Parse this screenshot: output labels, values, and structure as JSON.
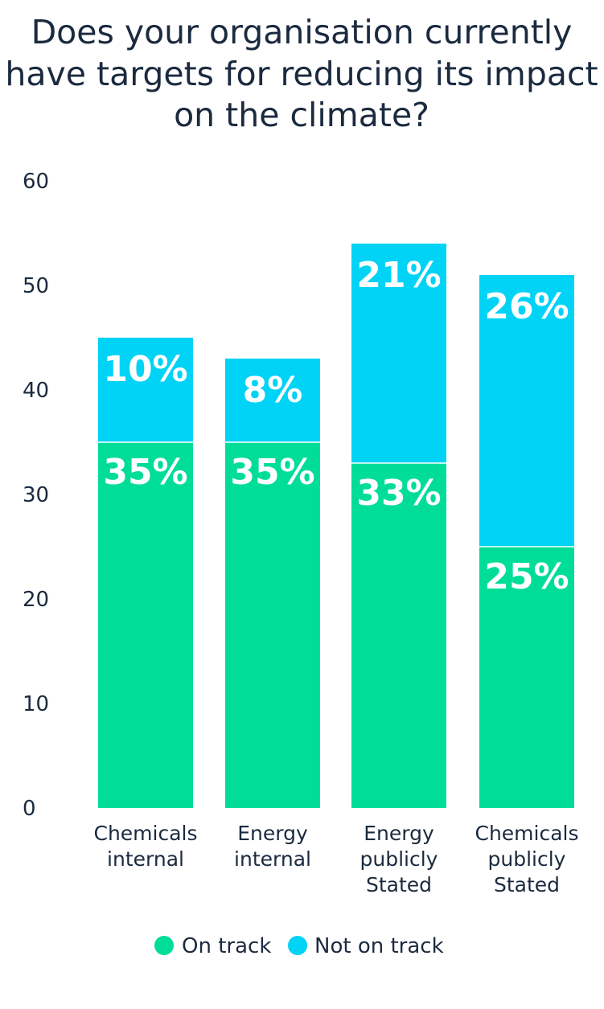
{
  "chart_data": {
    "type": "bar",
    "stacked": true,
    "title_lines": [
      "Does your organisation currently",
      "have targets for reducing its impact",
      "on the climate?"
    ],
    "categories": [
      [
        "Chemicals",
        "internal"
      ],
      [
        "Energy",
        "internal"
      ],
      [
        "Energy",
        "publicly",
        "Stated"
      ],
      [
        "Chemicals",
        "publicly",
        "Stated"
      ]
    ],
    "series": [
      {
        "name": "On track",
        "color": "#00dd98",
        "values": [
          35,
          35,
          33,
          25
        ],
        "labels": [
          "35%",
          "35%",
          "33%",
          "25%"
        ]
      },
      {
        "name": "Not on track",
        "color": "#00d3f6",
        "values": [
          10,
          8,
          21,
          26
        ],
        "labels": [
          "10%",
          "8%",
          "21%",
          "26%"
        ]
      }
    ],
    "ylim": [
      0,
      60
    ],
    "yticks": [
      "0",
      "10",
      "20",
      "30",
      "40",
      "50",
      "60"
    ],
    "grid": false,
    "legend_position": "bottom"
  }
}
